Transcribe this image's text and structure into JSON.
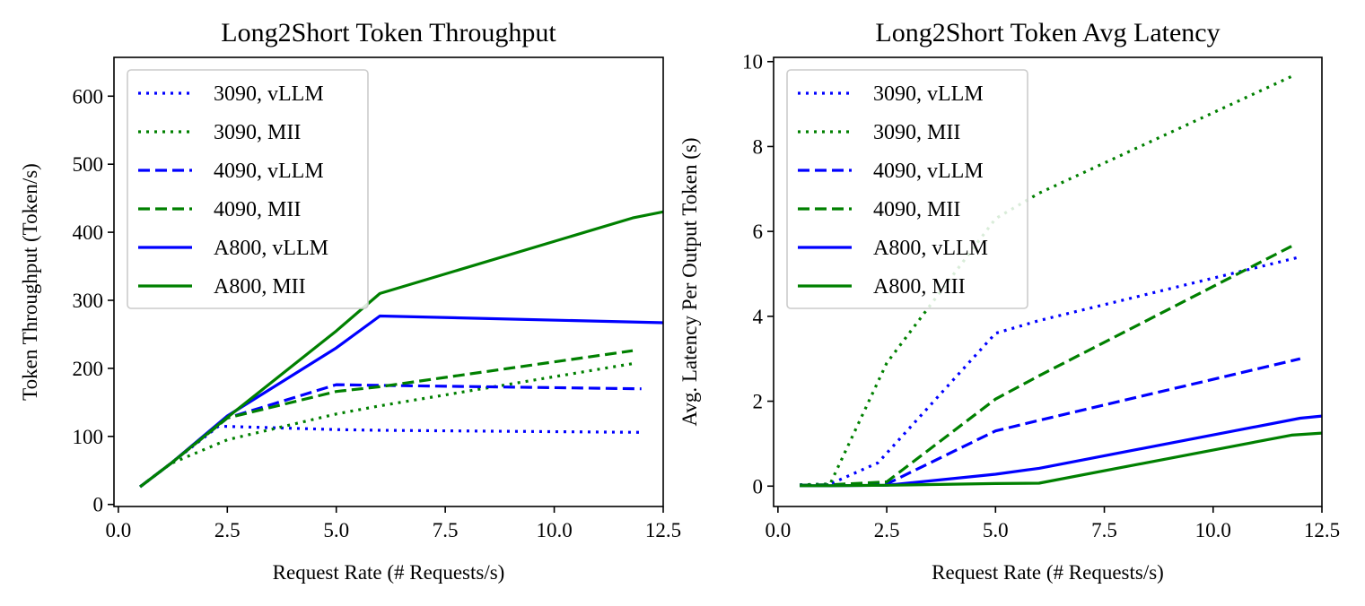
{
  "chart_data": [
    {
      "type": "line",
      "title": "Long2Short Token Throughput",
      "xlabel": "Request Rate (# Requests/s)",
      "ylabel": "Token Throughput (Token/s)",
      "xlim": [
        -0.1,
        12.5
      ],
      "ylim": [
        -3,
        657
      ],
      "xticks": [
        0.0,
        2.5,
        5.0,
        7.5,
        10.0,
        12.5
      ],
      "xtick_labels": [
        "0.0",
        "2.5",
        "5.0",
        "7.5",
        "10.0",
        "12.5"
      ],
      "yticks": [
        0,
        100,
        200,
        300,
        400,
        500,
        600
      ],
      "ytick_labels": [
        "0",
        "100",
        "200",
        "300",
        "400",
        "500",
        "600"
      ],
      "legend_position": "upper-left",
      "series": [
        {
          "name": "3090, vLLM",
          "color": "#0000ff",
          "style": "dotted",
          "x": [
            0.5,
            1.2,
            2.3,
            5.0,
            6.0,
            12.0
          ],
          "y": [
            26,
            60,
            115,
            110,
            109,
            106
          ]
        },
        {
          "name": "3090, MII",
          "color": "#008000",
          "style": "dotted",
          "x": [
            0.5,
            1.2,
            2.5,
            5.0,
            6.0,
            11.8
          ],
          "y": [
            26,
            60,
            95,
            133,
            145,
            207
          ]
        },
        {
          "name": "4090, vLLM",
          "color": "#0000ff",
          "style": "dashed",
          "x": [
            0.5,
            1.2,
            2.5,
            5.0,
            6.0,
            12.0
          ],
          "y": [
            26,
            60,
            127,
            176,
            175,
            170
          ]
        },
        {
          "name": "4090, MII",
          "color": "#008000",
          "style": "dashed",
          "x": [
            0.5,
            1.2,
            2.5,
            5.0,
            6.0,
            11.8
          ],
          "y": [
            26,
            60,
            127,
            166,
            173,
            226
          ]
        },
        {
          "name": "A800, vLLM",
          "color": "#0000ff",
          "style": "solid",
          "x": [
            0.5,
            1.2,
            2.5,
            5.0,
            6.0,
            12.5
          ],
          "y": [
            26,
            60,
            130,
            230,
            277,
            267
          ]
        },
        {
          "name": "A800, MII",
          "color": "#008000",
          "style": "solid",
          "x": [
            0.5,
            1.2,
            2.5,
            5.0,
            6.0,
            11.8,
            12.5
          ],
          "y": [
            26,
            60,
            128,
            255,
            310,
            421,
            430
          ]
        }
      ]
    },
    {
      "type": "line",
      "title": "Long2Short Token Avg Latency",
      "xlabel": "Request Rate (# Requests/s)",
      "ylabel": "Avg. Latency Per Output Token (s)",
      "xlim": [
        -0.1,
        12.5
      ],
      "ylim": [
        -0.48,
        10.1
      ],
      "xticks": [
        0.0,
        2.5,
        5.0,
        7.5,
        10.0,
        12.5
      ],
      "xtick_labels": [
        "0.0",
        "2.5",
        "5.0",
        "7.5",
        "10.0",
        "12.5"
      ],
      "yticks": [
        0,
        2,
        4,
        6,
        8,
        10
      ],
      "ytick_labels": [
        "0",
        "2",
        "4",
        "6",
        "8",
        "10"
      ],
      "legend_position": "upper-left",
      "series": [
        {
          "name": "3090, vLLM",
          "color": "#0000ff",
          "style": "dotted",
          "x": [
            0.5,
            1.2,
            2.3,
            5.0,
            6.0,
            12.0
          ],
          "y": [
            0.03,
            0.05,
            0.55,
            3.6,
            3.9,
            5.4
          ]
        },
        {
          "name": "3090, MII",
          "color": "#008000",
          "style": "dotted",
          "x": [
            0.5,
            1.2,
            2.5,
            5.0,
            6.0,
            11.8
          ],
          "y": [
            0.03,
            0.05,
            2.9,
            6.3,
            6.9,
            9.65
          ]
        },
        {
          "name": "4090, vLLM",
          "color": "#0000ff",
          "style": "dashed",
          "x": [
            0.5,
            1.2,
            2.5,
            5.0,
            6.0,
            12.0
          ],
          "y": [
            0.02,
            0.03,
            0.05,
            1.3,
            1.55,
            3.0
          ]
        },
        {
          "name": "4090, MII",
          "color": "#008000",
          "style": "dashed",
          "x": [
            0.5,
            1.2,
            2.5,
            5.0,
            6.0,
            11.8
          ],
          "y": [
            0.02,
            0.03,
            0.1,
            2.05,
            2.6,
            5.65
          ]
        },
        {
          "name": "A800, vLLM",
          "color": "#0000ff",
          "style": "solid",
          "x": [
            0.5,
            1.2,
            2.5,
            5.0,
            6.0,
            12.0,
            12.5
          ],
          "y": [
            0.01,
            0.01,
            0.02,
            0.28,
            0.42,
            1.6,
            1.65
          ]
        },
        {
          "name": "A800, MII",
          "color": "#008000",
          "style": "solid",
          "x": [
            0.5,
            1.2,
            2.5,
            5.0,
            6.0,
            11.8,
            12.5
          ],
          "y": [
            0.01,
            0.01,
            0.02,
            0.06,
            0.07,
            1.2,
            1.25
          ]
        }
      ]
    }
  ]
}
